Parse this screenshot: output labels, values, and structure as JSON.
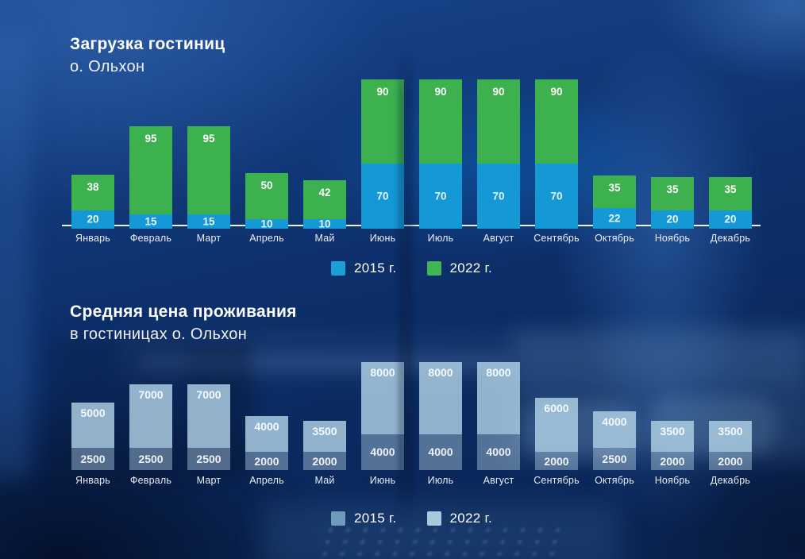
{
  "chart_data": [
    {
      "type": "bar",
      "stacked": true,
      "title": "Загрузка гостиниц",
      "subtitle": "о. Ольхон",
      "categories": [
        "Январь",
        "Февраль",
        "Март",
        "Апрель",
        "Май",
        "Июнь",
        "Июль",
        "Август",
        "Сентябрь",
        "Октябрь",
        "Ноябрь",
        "Декабрь"
      ],
      "series": [
        {
          "name": "2015 г.",
          "color": "#1499d6",
          "legend_color": "#1a9fd9",
          "label_color": "#e6f5fc",
          "values": [
            20,
            15,
            15,
            10,
            10,
            70,
            70,
            70,
            70,
            22,
            20,
            20
          ]
        },
        {
          "name": "2022 г.",
          "color": "#3cb14e",
          "legend_color": "#41b551",
          "label_color": "#ffffff",
          "values": [
            38,
            95,
            95,
            50,
            42,
            90,
            90,
            90,
            90,
            35,
            35,
            35
          ]
        }
      ],
      "ylim": [
        0,
        160
      ],
      "legend_position": "bottom",
      "axis_line": true
    },
    {
      "type": "bar",
      "stacked": true,
      "title": "Средняя цена проживания",
      "subtitle": "в гостиницах о. Ольхон",
      "categories": [
        "Январь",
        "Февраль",
        "Март",
        "Апрель",
        "Май",
        "Июнь",
        "Июль",
        "Август",
        "Сентябрь",
        "Октябрь",
        "Ноябрь",
        "Декабрь"
      ],
      "series": [
        {
          "name": "2015 г.",
          "color": "rgba(158,188,212,0.50)",
          "legend_color": "#6f9ab9",
          "label_color": "rgba(255,255,255,0.90)",
          "values": [
            2500,
            2500,
            2500,
            2000,
            2000,
            4000,
            4000,
            4000,
            2000,
            2500,
            2000,
            2000
          ]
        },
        {
          "name": "2022 г.",
          "color": "rgba(173,206,227,0.84)",
          "legend_color": "#a9cade",
          "label_color": "#f4fafd",
          "values": [
            5000,
            7000,
            7000,
            4000,
            3500,
            8000,
            8000,
            8000,
            6000,
            4000,
            3500,
            3500
          ]
        }
      ],
      "ylim": [
        0,
        12000
      ],
      "legend_position": "bottom",
      "axis_line": false
    }
  ]
}
